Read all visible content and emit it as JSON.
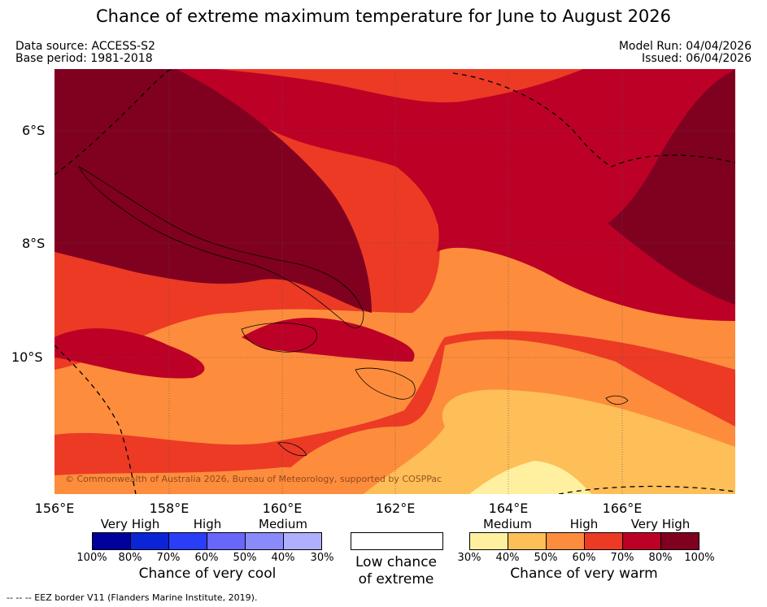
{
  "title": "Chance of extreme maximum temperature for June to August 2026",
  "meta": {
    "data_source": "Data source: ACCESS-S2",
    "base_period": "Base period: 1981-2018",
    "model_run": "Model Run: 04/04/2026",
    "issued": "Issued: 06/04/2026"
  },
  "axes": {
    "lat_labels": [
      "6°S",
      "8°S",
      "10°S"
    ],
    "lon_labels": [
      "156°E",
      "158°E",
      "160°E",
      "162°E",
      "164°E",
      "166°E"
    ]
  },
  "copyright": "© Commonwealth of Australia 2026, Bureau of Meteorology, supported by COSPPac",
  "legend_cool": {
    "categories": [
      "Very High",
      "High",
      "Medium"
    ],
    "ticks": [
      "100%",
      "80%",
      "70%",
      "60%",
      "50%",
      "40%",
      "30%"
    ],
    "colors": [
      "#00009a",
      "#0b25d6",
      "#2a3ef8",
      "#6866fb",
      "#8a8afb",
      "#aeaffd"
    ],
    "title": "Chance of very cool"
  },
  "legend_low": {
    "line1": "Low chance",
    "line2": "of extreme"
  },
  "legend_warm": {
    "categories": [
      "Medium",
      "High",
      "Very High"
    ],
    "ticks": [
      "30%",
      "40%",
      "50%",
      "60%",
      "70%",
      "80%",
      "100%"
    ],
    "colors": [
      "#fff0a0",
      "#febe58",
      "#fd8d3c",
      "#ec3a25",
      "#bd0026",
      "#800020"
    ],
    "title": "Chance of very warm"
  },
  "footnote": "--  --  -- EEZ border V11 (Flanders Marine Institute, 2019)."
}
